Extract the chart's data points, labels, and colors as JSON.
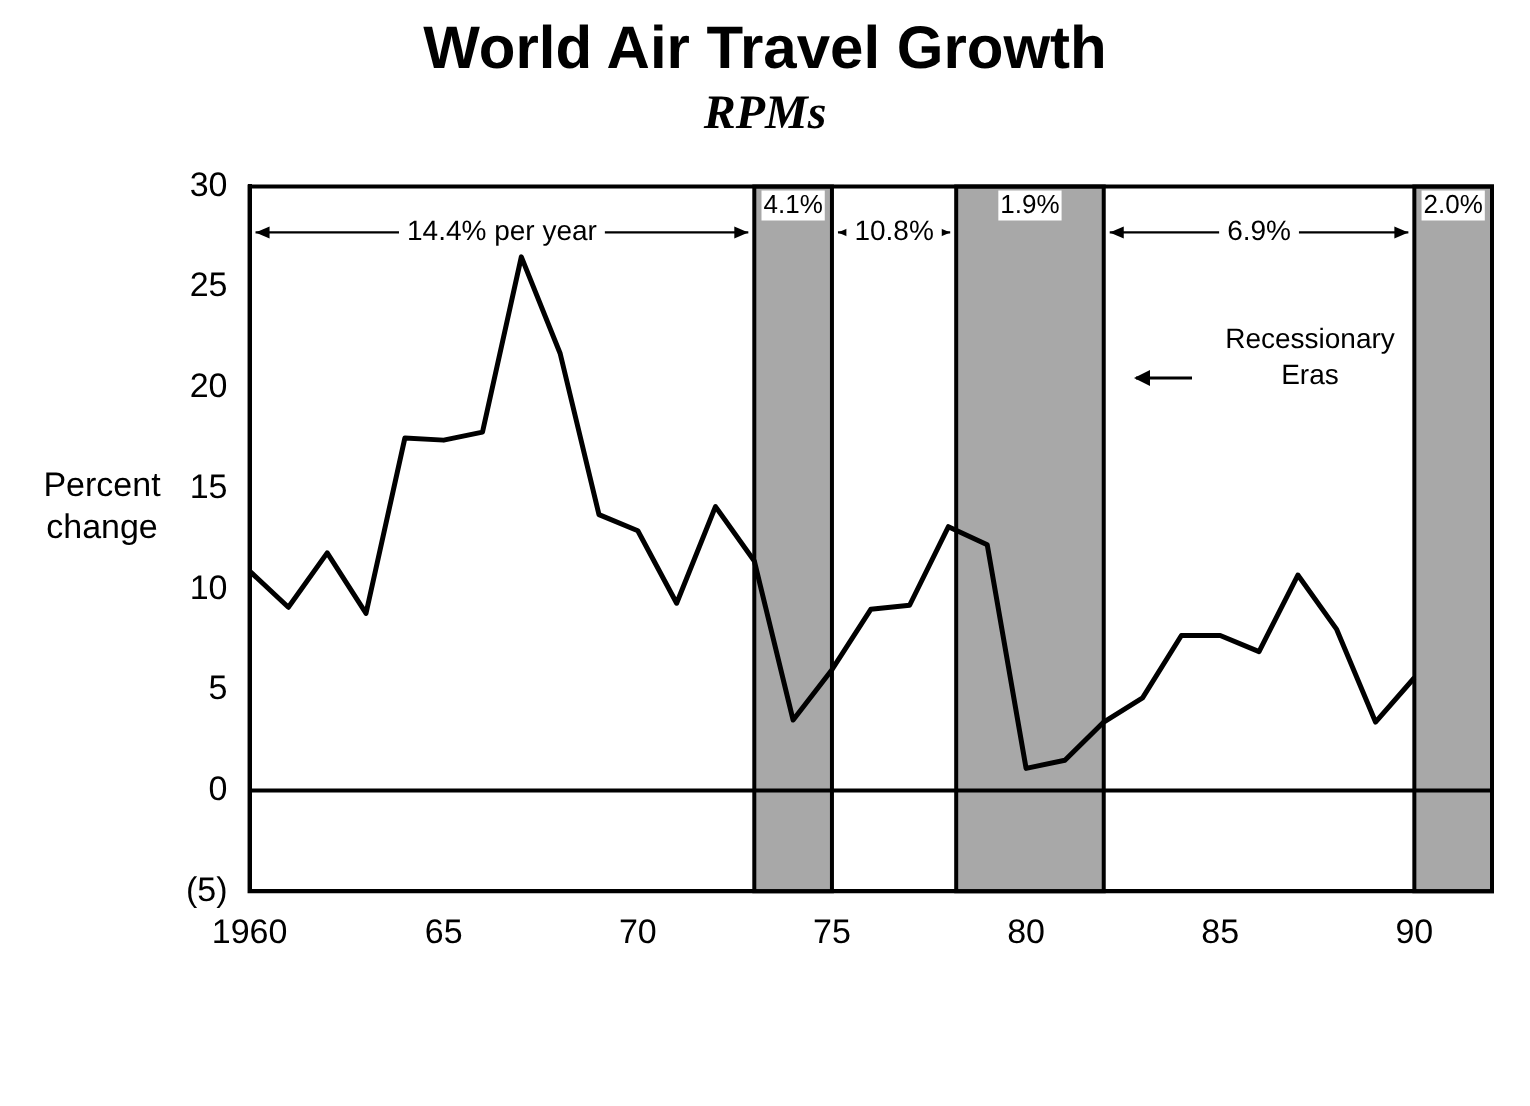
{
  "chart_data": {
    "type": "line",
    "title": "World Air Travel Growth",
    "subtitle": "RPMs",
    "ylabel": "Percent change",
    "x": [
      1960,
      1961,
      1962,
      1963,
      1964,
      1965,
      1966,
      1967,
      1968,
      1969,
      1970,
      1971,
      1972,
      1973,
      1974,
      1975,
      1976,
      1977,
      1978,
      1979,
      1980,
      1981,
      1982,
      1983,
      1984,
      1985,
      1986,
      1987,
      1988,
      1989,
      1990
    ],
    "series": [
      {
        "color": "#000000",
        "values": [
          10.9,
          9.1,
          11.8,
          8.8,
          17.5,
          17.4,
          17.8,
          26.5,
          21.7,
          13.7,
          12.9,
          9.3,
          14.1,
          11.4,
          3.5,
          6,
          9,
          9.2,
          13.1,
          12.2,
          1.1,
          1.5,
          3.4,
          4.6,
          7.7,
          7.7,
          6.9,
          10.7,
          8,
          3.4,
          5.6
        ]
      }
    ],
    "xlim": [
      1960,
      1992
    ],
    "xticks": [
      1960,
      {
        "value": 1965,
        "label": "65"
      },
      {
        "value": 1970,
        "label": "70"
      },
      {
        "value": 1975,
        "label": "75"
      },
      {
        "value": 1980,
        "label": "80"
      },
      {
        "value": 1985,
        "label": "85"
      },
      {
        "value": 1990,
        "label": "90"
      }
    ],
    "ylim": [
      -5,
      30
    ],
    "yticks": [
      {
        "value": -5,
        "label": "(5)"
      },
      0,
      5,
      10,
      15,
      20,
      25,
      30
    ],
    "ref_lines": [
      {
        "axis": "y",
        "value": 0,
        "color": "#000000"
      }
    ],
    "bands": [
      {
        "axis": "x",
        "from": 1973,
        "to": 1975,
        "label": "4.1%",
        "color": "#a8a8a8"
      },
      {
        "axis": "x",
        "from": 1978.2,
        "to": 1982,
        "label": "1.9%",
        "color": "#a8a8a8"
      },
      {
        "axis": "x",
        "from": 1990,
        "to": 1992,
        "label": "2.0%",
        "color": "#a8a8a8"
      }
    ],
    "annotations": [
      "14.4% per year",
      "10.8%",
      "6.9%",
      "Recessionary Eras"
    ],
    "grid": false,
    "legend": false,
    "marker": "none",
    "line_style": "solid"
  }
}
